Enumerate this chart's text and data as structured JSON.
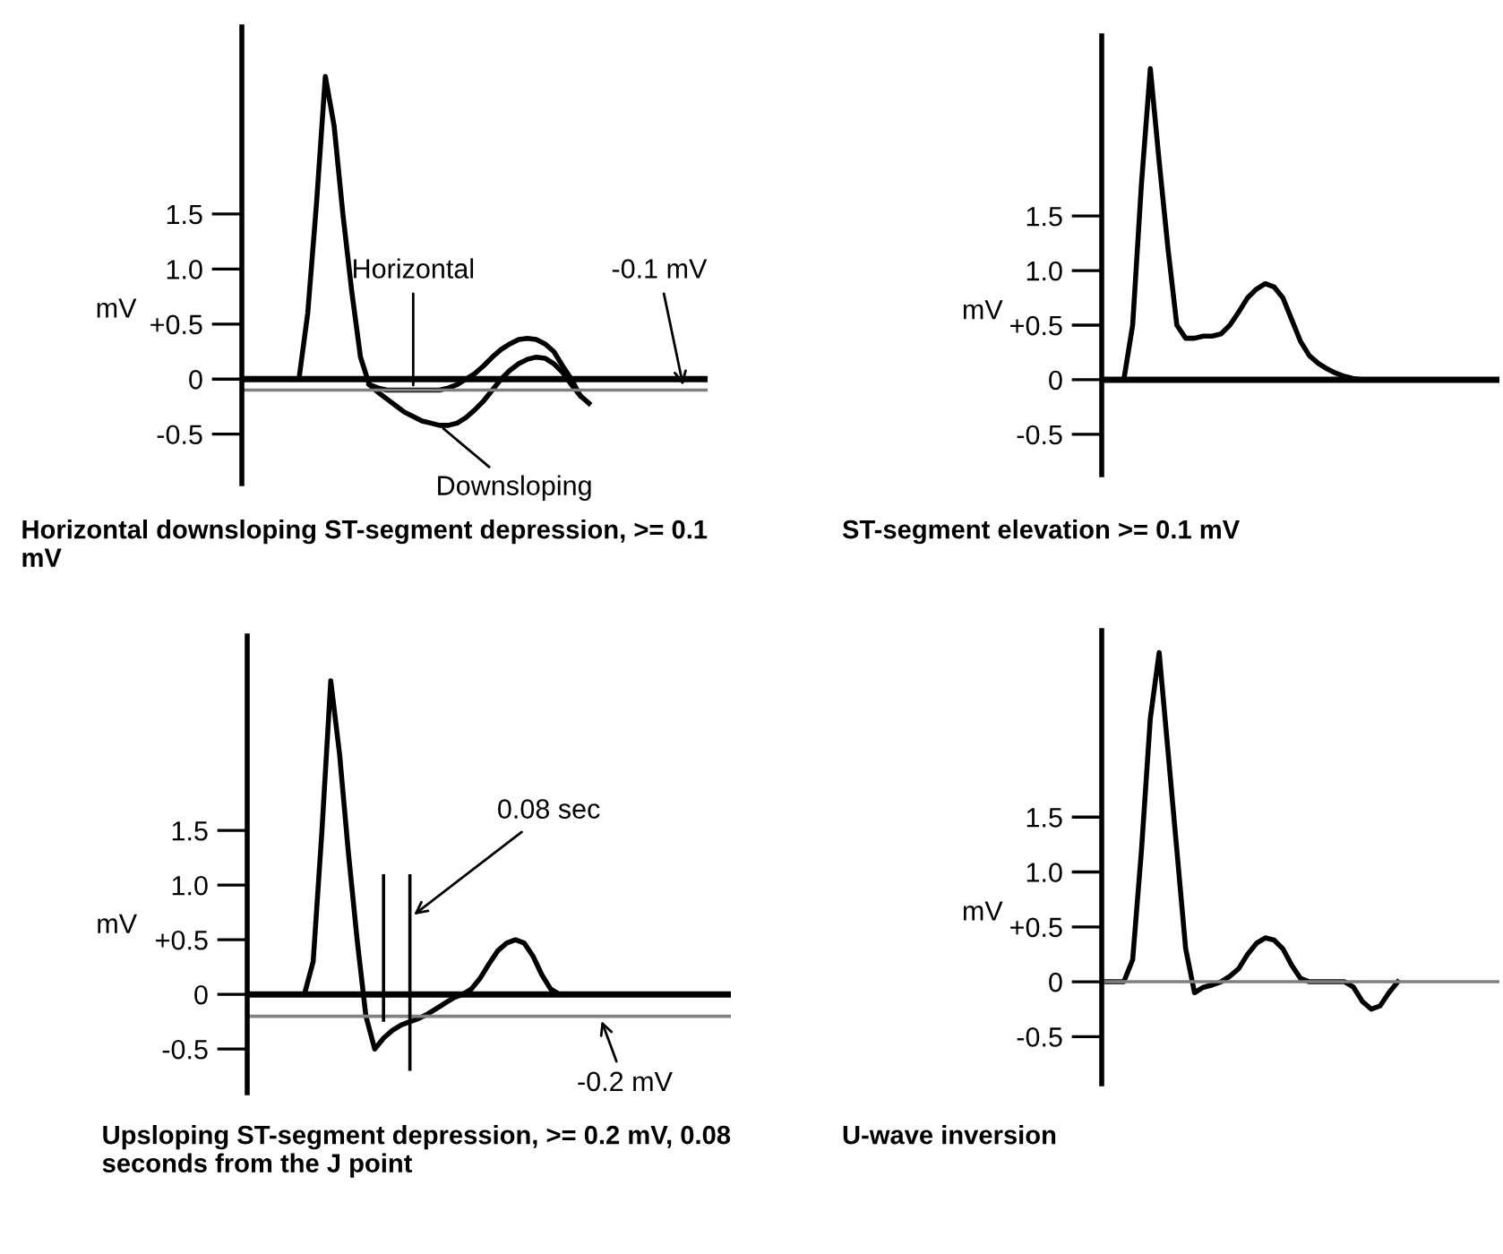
{
  "chart_data": [
    {
      "type": "line",
      "xlabel": "Horizontal downsloping ST-segment depression, >= 0.1 mV",
      "ylabel": "mV",
      "tick_labels": "y",
      "ylim": [
        -0.95,
        3.2
      ],
      "yticks": [
        {
          "value": 1.5,
          "label": "1.5"
        },
        {
          "value": 1.0,
          "label": "1.0"
        },
        {
          "value": 0.5,
          "label": "+0.5"
        },
        0,
        {
          "value": -0.5,
          "label": "-0.5"
        }
      ],
      "categories": [
        null,
        null,
        null,
        null,
        null,
        null,
        null,
        null,
        null,
        null,
        null,
        null,
        null,
        null,
        null,
        null,
        null,
        null,
        null,
        null,
        null,
        null,
        null,
        null,
        null,
        null,
        null,
        null,
        null,
        null,
        null,
        null,
        null,
        null,
        null,
        null,
        null,
        null,
        null,
        null,
        null,
        null,
        null,
        null,
        null,
        null,
        null,
        null,
        null,
        null,
        null,
        null,
        null
      ],
      "series": [
        {
          "color": "#000000",
          "values": [
            0,
            0,
            0,
            0,
            0,
            0,
            0,
            0.6,
            1.6,
            2.75,
            2.3,
            1.5,
            0.8,
            0.2,
            -0.05,
            -0.08,
            -0.1,
            -0.1,
            -0.1,
            -0.1,
            -0.1,
            -0.1,
            -0.1,
            -0.08,
            -0.05,
            0,
            0.05,
            0.12,
            0.2,
            0.27,
            0.32,
            0.36,
            0.37,
            0.36,
            0.32,
            0.25,
            0.12,
            0,
            -0.15,
            -0.22,
            null,
            null,
            null,
            null,
            null,
            null,
            null,
            null,
            null,
            null,
            null,
            null,
            null
          ]
        },
        {
          "color": "#000000",
          "values": [
            null,
            null,
            null,
            null,
            null,
            null,
            null,
            null,
            null,
            null,
            null,
            null,
            null,
            null,
            -0.05,
            -0.12,
            -0.18,
            -0.24,
            -0.3,
            -0.34,
            -0.38,
            -0.4,
            -0.42,
            -0.42,
            -0.4,
            -0.35,
            -0.28,
            -0.2,
            -0.1,
            0,
            0.08,
            0.14,
            0.18,
            0.2,
            0.19,
            0.14,
            0.06,
            -0.05,
            -0.15,
            null,
            null,
            null,
            null,
            null,
            null,
            null,
            null,
            null,
            null,
            null,
            null,
            null,
            null
          ]
        }
      ],
      "ref_lines": [
        {
          "axis": "y",
          "value": 0,
          "color": "#000000"
        },
        {
          "axis": "y",
          "value": -0.1,
          "label": "-0.1 mV",
          "color": "#808080"
        }
      ],
      "annotations": [
        {
          "text": "Horizontal",
          "y": -0.1
        },
        "Downsloping"
      ]
    },
    {
      "type": "line",
      "xlabel": "ST-segment elevation >= 0.1 mV",
      "ylabel": "mV",
      "tick_labels": "y",
      "ylim": [
        -0.87,
        3.15
      ],
      "yticks": [
        {
          "value": 1.5,
          "label": "1.5"
        },
        {
          "value": 1.0,
          "label": "1.0"
        },
        {
          "value": 0.5,
          "label": "+0.5"
        },
        0,
        {
          "value": -0.5,
          "label": "-0.5"
        }
      ],
      "categories": [
        null,
        null,
        null,
        null,
        null,
        null,
        null,
        null,
        null,
        null,
        null,
        null,
        null,
        null,
        null,
        null,
        null,
        null,
        null,
        null,
        null,
        null,
        null,
        null,
        null,
        null,
        null,
        null,
        null,
        null,
        null,
        null,
        null,
        null,
        null,
        null,
        null,
        null,
        null,
        null,
        null,
        null,
        null,
        null,
        null
      ],
      "series": [
        {
          "color": "#000000",
          "values": [
            0,
            0,
            0,
            0.5,
            1.8,
            2.85,
            2.0,
            1.2,
            0.5,
            0.38,
            0.38,
            0.4,
            0.4,
            0.42,
            0.5,
            0.62,
            0.75,
            0.83,
            0.88,
            0.85,
            0.75,
            0.55,
            0.35,
            0.22,
            0.15,
            0.1,
            0.06,
            0.03,
            0.01,
            0,
            null,
            null,
            null,
            null,
            null,
            null,
            null,
            null,
            null,
            null,
            null,
            null,
            null,
            null,
            null
          ]
        }
      ],
      "ref_lines": [
        {
          "axis": "y",
          "value": 0,
          "color": "#000000"
        }
      ]
    },
    {
      "type": "line",
      "xlabel": "Upsloping ST-segment depression, >= 0.2 mV, 0.08 seconds from the J point",
      "ylabel": "mV",
      "tick_labels": "y",
      "ylim": [
        -0.9,
        3.28
      ],
      "yticks": [
        {
          "value": 1.5,
          "label": "1.5"
        },
        {
          "value": 1.0,
          "label": "1.0"
        },
        {
          "value": 0.5,
          "label": "+0.5"
        },
        0,
        {
          "value": -0.5,
          "label": "-0.5"
        }
      ],
      "categories": [
        null,
        null,
        null,
        null,
        null,
        null,
        null,
        null,
        null,
        null,
        null,
        null,
        null,
        null,
        null,
        null,
        null,
        null,
        null,
        null,
        null,
        null,
        null,
        null,
        null,
        null,
        null,
        null,
        null,
        null,
        null,
        null,
        null,
        null,
        null,
        null,
        null,
        null,
        null,
        null,
        null,
        null,
        null,
        null,
        null,
        null,
        null,
        null,
        null,
        null,
        null,
        null,
        null,
        null,
        null
      ],
      "series": [
        {
          "color": "#000000",
          "values": [
            0,
            0,
            0,
            0,
            0,
            0,
            0,
            0.3,
            1.5,
            2.87,
            2.2,
            1.3,
            0.5,
            -0.2,
            -0.5,
            -0.4,
            -0.33,
            -0.28,
            -0.25,
            -0.22,
            -0.18,
            -0.13,
            -0.08,
            -0.03,
            0,
            0.05,
            0.15,
            0.28,
            0.4,
            0.47,
            0.5,
            0.47,
            0.35,
            0.18,
            0.05,
            0,
            0,
            0,
            0,
            0,
            0,
            0,
            0,
            0,
            0,
            0,
            0,
            0,
            0,
            0,
            null,
            null,
            null,
            null,
            null
          ]
        }
      ],
      "ref_lines": [
        {
          "axis": "y",
          "value": 0,
          "color": "#000000"
        },
        {
          "axis": "y",
          "value": -0.2,
          "label": "-0.2 mV",
          "color": "#808080"
        }
      ],
      "annotations": [
        "0.08 sec"
      ]
    },
    {
      "type": "line",
      "xlabel": "U-wave inversion",
      "ylabel": "mV",
      "tick_labels": "y",
      "ylim": [
        -0.93,
        3.2
      ],
      "yticks": [
        {
          "value": 1.5,
          "label": "1.5"
        },
        {
          "value": 1.0,
          "label": "1.0"
        },
        {
          "value": 0.5,
          "label": "+0.5"
        },
        0,
        {
          "value": -0.5,
          "label": "-0.5"
        }
      ],
      "categories": [
        null,
        null,
        null,
        null,
        null,
        null,
        null,
        null,
        null,
        null,
        null,
        null,
        null,
        null,
        null,
        null,
        null,
        null,
        null,
        null,
        null,
        null,
        null,
        null,
        null,
        null,
        null,
        null,
        null,
        null,
        null,
        null,
        null,
        null,
        null,
        null,
        null,
        null,
        null,
        null,
        null,
        null,
        null,
        null,
        null
      ],
      "series": [
        {
          "color": "#000000",
          "values": [
            0,
            0,
            0,
            0.2,
            1.2,
            2.4,
            3.0,
            2.1,
            1.2,
            0.3,
            -0.1,
            -0.05,
            -0.03,
            0,
            0.05,
            0.12,
            0.25,
            0.35,
            0.4,
            0.38,
            0.3,
            0.15,
            0.03,
            0,
            0,
            0,
            0,
            0,
            -0.05,
            -0.18,
            -0.25,
            -0.22,
            -0.1,
            0,
            null,
            null,
            null,
            null,
            null,
            null,
            null,
            null,
            null,
            null,
            null
          ]
        }
      ],
      "ref_lines": [
        {
          "axis": "y",
          "value": 0,
          "color": "#808080"
        }
      ]
    }
  ]
}
